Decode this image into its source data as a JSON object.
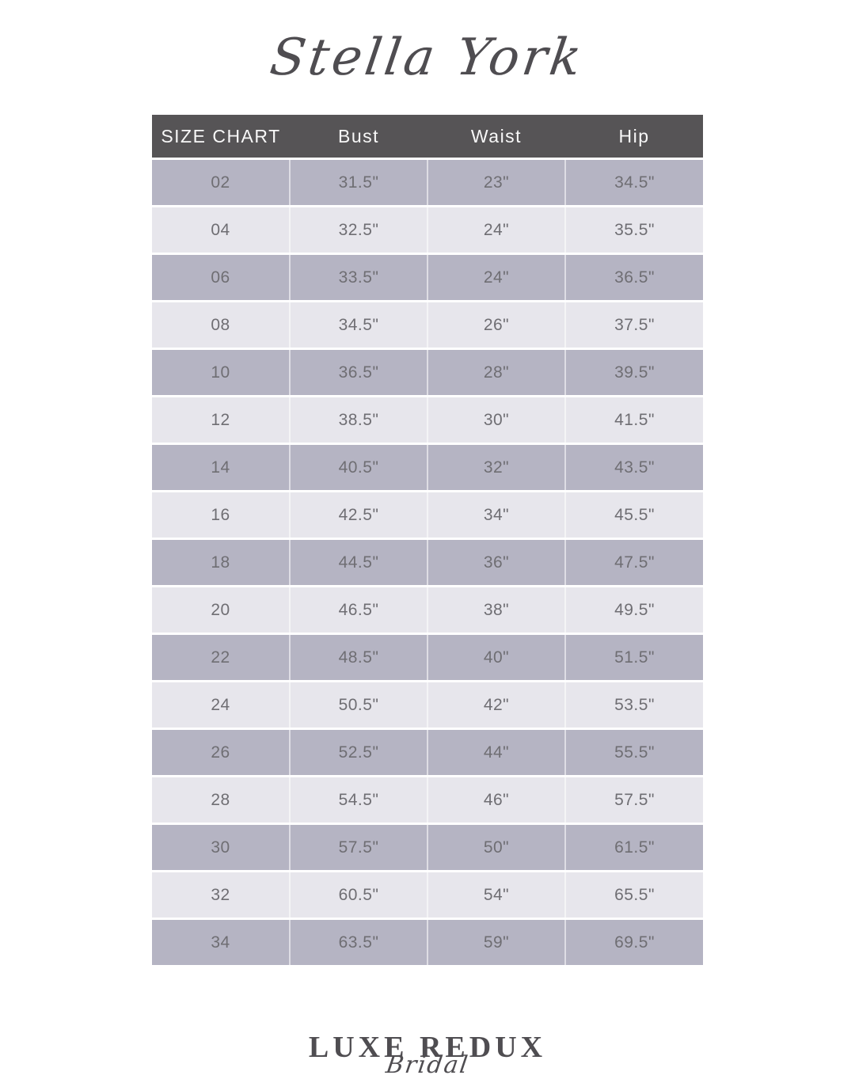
{
  "brand": {
    "name": "Stella York"
  },
  "size_chart": {
    "header": {
      "label": "SIZE CHART",
      "columns": [
        "Bust",
        "Waist",
        "Hip"
      ]
    },
    "rows": [
      {
        "size": "02",
        "bust": "31.5\"",
        "waist": "23\"",
        "hip": "34.5\""
      },
      {
        "size": "04",
        "bust": "32.5\"",
        "waist": "24\"",
        "hip": "35.5\""
      },
      {
        "size": "06",
        "bust": "33.5\"",
        "waist": "24\"",
        "hip": "36.5\""
      },
      {
        "size": "08",
        "bust": "34.5\"",
        "waist": "26\"",
        "hip": "37.5\""
      },
      {
        "size": "10",
        "bust": "36.5\"",
        "waist": "28\"",
        "hip": "39.5\""
      },
      {
        "size": "12",
        "bust": "38.5\"",
        "waist": "30\"",
        "hip": "41.5\""
      },
      {
        "size": "14",
        "bust": "40.5\"",
        "waist": "32\"",
        "hip": "43.5\""
      },
      {
        "size": "16",
        "bust": "42.5\"",
        "waist": "34\"",
        "hip": "45.5\""
      },
      {
        "size": "18",
        "bust": "44.5\"",
        "waist": "36\"",
        "hip": "47.5\""
      },
      {
        "size": "20",
        "bust": "46.5\"",
        "waist": "38\"",
        "hip": "49.5\""
      },
      {
        "size": "22",
        "bust": "48.5\"",
        "waist": "40\"",
        "hip": "51.5\""
      },
      {
        "size": "24",
        "bust": "50.5\"",
        "waist": "42\"",
        "hip": "53.5\""
      },
      {
        "size": "26",
        "bust": "52.5\"",
        "waist": "44\"",
        "hip": "55.5\""
      },
      {
        "size": "28",
        "bust": "54.5\"",
        "waist": "46\"",
        "hip": "57.5\""
      },
      {
        "size": "30",
        "bust": "57.5\"",
        "waist": "50\"",
        "hip": "61.5\""
      },
      {
        "size": "32",
        "bust": "60.5\"",
        "waist": "54\"",
        "hip": "65.5\""
      },
      {
        "size": "34",
        "bust": "63.5\"",
        "waist": "59\"",
        "hip": "69.5\""
      }
    ]
  },
  "footer": {
    "logo_primary": "LUXE REDUX",
    "logo_secondary": "Bridal"
  },
  "colors": {
    "page_bg": "#ffffff",
    "header_bg": "#565456",
    "header_text": "#f8f8f8",
    "row_light": "#e7e6ec",
    "row_dark": "#b5b4c3",
    "row_text": "#6f6e73",
    "logo_text": "#4f4d51"
  },
  "chart_data": {
    "type": "table",
    "title": "SIZE CHART",
    "columns": [
      "SIZE CHART",
      "Bust",
      "Waist",
      "Hip"
    ],
    "rows": [
      [
        "02",
        "31.5\"",
        "23\"",
        "34.5\""
      ],
      [
        "04",
        "32.5\"",
        "24\"",
        "35.5\""
      ],
      [
        "06",
        "33.5\"",
        "24\"",
        "36.5\""
      ],
      [
        "08",
        "34.5\"",
        "26\"",
        "37.5\""
      ],
      [
        "10",
        "36.5\"",
        "28\"",
        "39.5\""
      ],
      [
        "12",
        "38.5\"",
        "30\"",
        "41.5\""
      ],
      [
        "14",
        "40.5\"",
        "32\"",
        "43.5\""
      ],
      [
        "16",
        "42.5\"",
        "34\"",
        "45.5\""
      ],
      [
        "18",
        "44.5\"",
        "36\"",
        "47.5\""
      ],
      [
        "20",
        "46.5\"",
        "38\"",
        "49.5\""
      ],
      [
        "22",
        "48.5\"",
        "40\"",
        "51.5\""
      ],
      [
        "24",
        "50.5\"",
        "42\"",
        "53.5\""
      ],
      [
        "26",
        "52.5\"",
        "44\"",
        "55.5\""
      ],
      [
        "28",
        "54.5\"",
        "46\"",
        "57.5\""
      ],
      [
        "30",
        "57.5\"",
        "50\"",
        "61.5\""
      ],
      [
        "32",
        "60.5\"",
        "54\"",
        "65.5\""
      ],
      [
        "34",
        "63.5\"",
        "59\"",
        "69.5\""
      ]
    ],
    "layout": {
      "row_striping": "alternating light/dark lavender-gray",
      "header_style": "dark gray bar, white text",
      "alignment": "all cells centered"
    }
  }
}
